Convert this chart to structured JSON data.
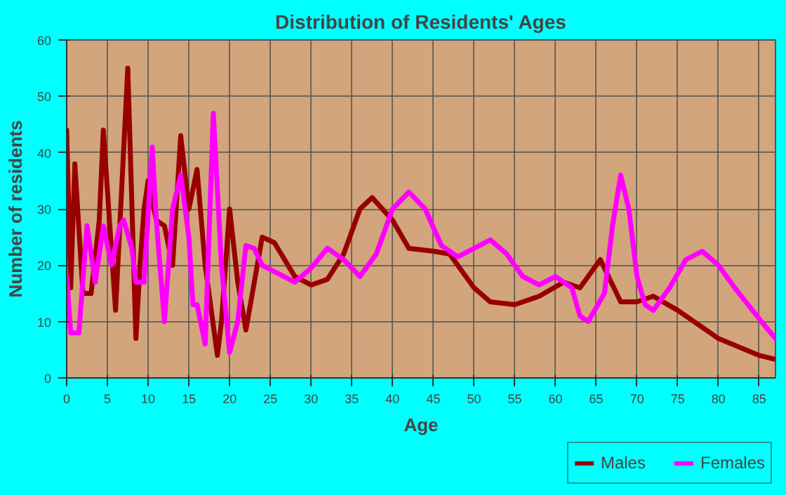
{
  "chart_data": {
    "type": "line",
    "title": "Distribution of Residents' Ages",
    "xlabel": "Age",
    "ylabel": "Number of residents",
    "xlim": [
      0,
      87
    ],
    "ylim": [
      0,
      60
    ],
    "xticks": [
      0,
      5,
      10,
      15,
      20,
      25,
      30,
      35,
      40,
      45,
      50,
      55,
      60,
      65,
      70,
      75,
      80,
      85
    ],
    "yticks": [
      0,
      10,
      20,
      30,
      40,
      50,
      60
    ],
    "grid": true,
    "legend": "bottom right",
    "line_style": "solid",
    "marker": "none",
    "series": [
      {
        "name": "Males",
        "color": "#990000",
        "x": [
          0,
          0.5,
          1,
          2,
          3,
          4,
          4.5,
          6,
          7.5,
          8.5,
          9,
          9.5,
          10,
          11,
          12,
          13,
          14,
          15,
          16,
          17,
          18.5,
          19,
          20,
          21,
          22,
          24,
          25.5,
          28,
          30,
          32,
          34,
          36,
          37.5,
          40,
          42,
          45,
          47,
          50,
          52,
          55,
          58,
          61,
          63,
          65.5,
          68,
          70,
          72,
          75,
          80,
          85,
          87
        ],
        "values": [
          44,
          16,
          38,
          15,
          15,
          28,
          44,
          12,
          55,
          7,
          20,
          30,
          35,
          28,
          27,
          20,
          43,
          30,
          37,
          20,
          4,
          10,
          30,
          17,
          8.5,
          25,
          24,
          18,
          16.5,
          17.5,
          22,
          30,
          32,
          28,
          23,
          22.5,
          22,
          16,
          13.5,
          13,
          14.5,
          17,
          16,
          21,
          13.5,
          13.5,
          14.5,
          12,
          7,
          4,
          3.3
        ]
      },
      {
        "name": "Females",
        "color": "#ff00ff",
        "x": [
          0,
          0.5,
          1.5,
          2.5,
          3.5,
          4.5,
          5.5,
          6.5,
          7,
          8,
          8.5,
          9.5,
          10.5,
          11,
          12,
          13,
          14,
          15,
          15.5,
          16,
          17,
          18,
          19,
          20,
          21,
          22,
          23,
          24,
          26,
          28,
          30,
          32,
          34,
          36,
          38,
          40,
          42,
          44,
          46,
          48,
          50,
          52,
          54,
          56,
          58,
          60,
          62,
          63,
          64,
          66,
          67,
          68,
          69,
          70,
          71,
          72,
          74,
          76,
          78,
          80,
          82,
          85,
          87
        ],
        "values": [
          18,
          8,
          8,
          27,
          17,
          27,
          20,
          27,
          28,
          23,
          17,
          17,
          41,
          28,
          10,
          30,
          36,
          25,
          13,
          13,
          6,
          47,
          20,
          4.5,
          10,
          23.5,
          23,
          20,
          18.5,
          17,
          19.5,
          23,
          21,
          18,
          22,
          30,
          33,
          30,
          23.5,
          21.5,
          23,
          24.5,
          22,
          18,
          16.5,
          18,
          16,
          11,
          10,
          15,
          27,
          36,
          30,
          18,
          13,
          12,
          16,
          21,
          22.5,
          20,
          16,
          10.5,
          7
        ]
      }
    ]
  }
}
